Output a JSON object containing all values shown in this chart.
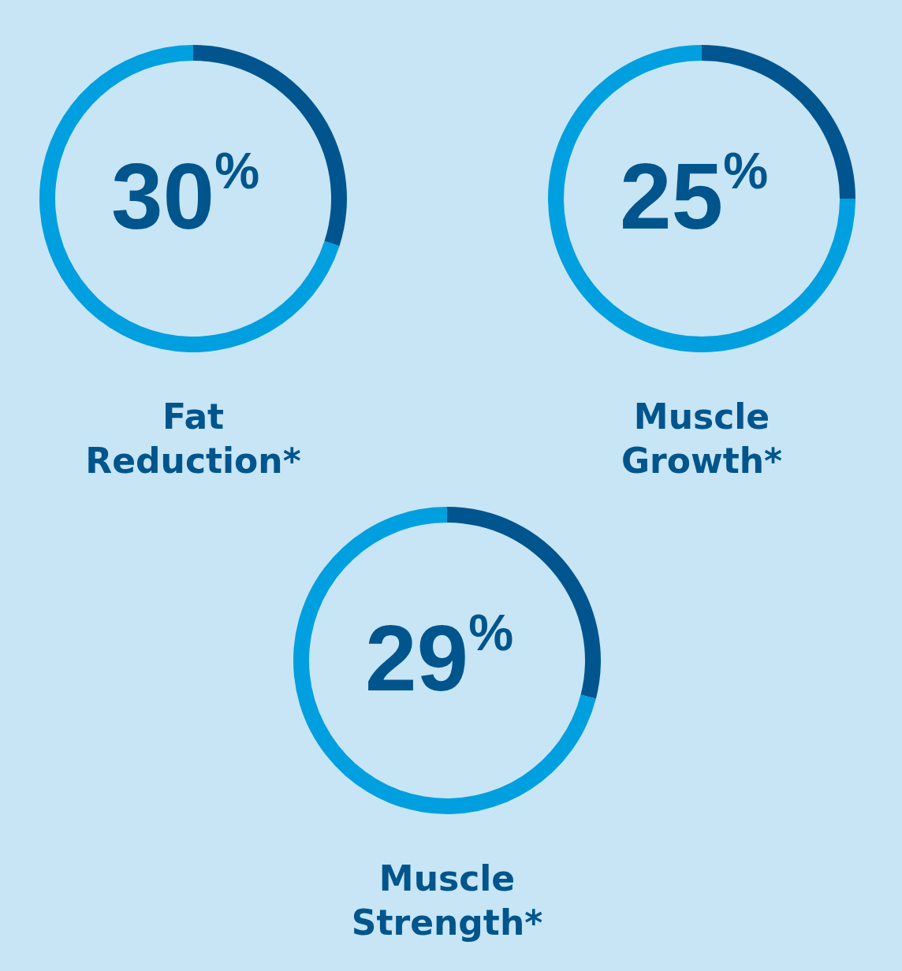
{
  "chart_data": [
    {
      "type": "donut",
      "title": "Fat Reduction*",
      "categories": [
        null,
        null
      ],
      "values": [
        30,
        70
      ],
      "colors": [
        "#00558f",
        "#009fdf"
      ],
      "annotations": [
        "30$^{%}$"
      ]
    },
    {
      "type": "donut",
      "title": "Muscle Growth*",
      "categories": [
        null,
        null
      ],
      "values": [
        25,
        75
      ],
      "colors": [
        "#00558f",
        "#009fdf"
      ],
      "annotations": [
        "25$^{%}$"
      ]
    },
    {
      "type": "donut",
      "title": "Muscle Strength*",
      "categories": [
        null,
        null
      ],
      "values": [
        29,
        71
      ],
      "colors": [
        "#00558f",
        "#009fdf"
      ],
      "annotations": [
        "29$^{%}$"
      ]
    }
  ]
}
